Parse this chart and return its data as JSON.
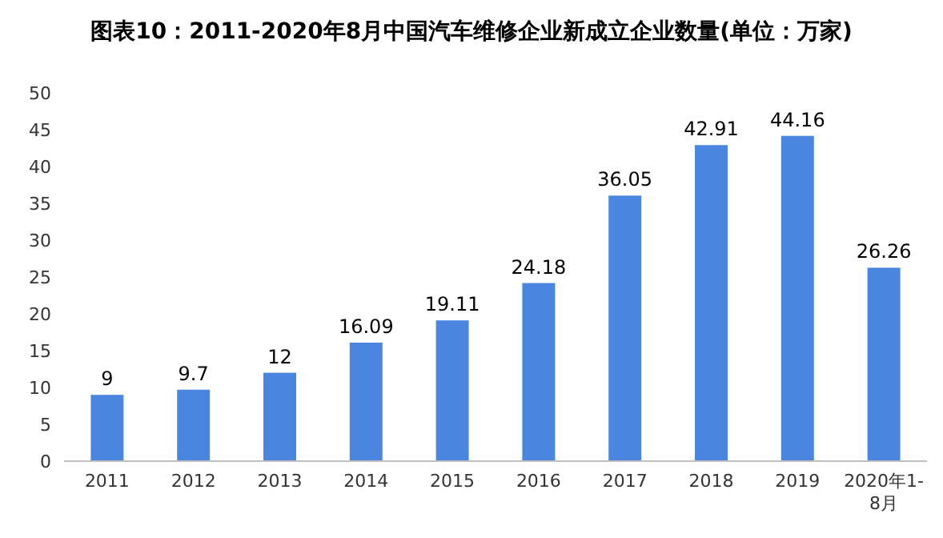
{
  "chart_data": {
    "type": "bar",
    "title": "图表10：2011-2020年8月中国汽车维修企业新成立企业数量(单位：万家)",
    "categories": [
      "2011",
      "2012",
      "2013",
      "2014",
      "2015",
      "2016",
      "2017",
      "2018",
      "2019",
      "2020年1-8月"
    ],
    "values": [
      9,
      9.7,
      12,
      16.09,
      19.11,
      24.18,
      36.05,
      42.91,
      44.16,
      26.26
    ],
    "color": "#4a86e0",
    "ylim": [
      0,
      50
    ],
    "yticks": [
      0,
      5,
      10,
      15,
      20,
      25,
      30,
      35,
      40,
      45,
      50
    ],
    "grid": false,
    "data_labels": true
  }
}
